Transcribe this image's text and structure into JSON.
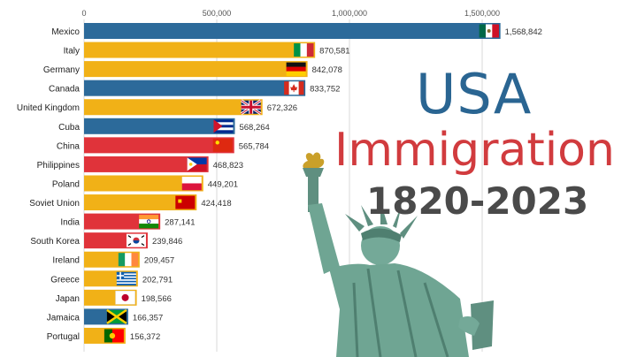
{
  "headline": {
    "line1": "USA",
    "line2": "Immigration",
    "line3": "1820-2023"
  },
  "colors": {
    "blue": "#2c6a9a",
    "gold": "#f1b117",
    "red": "#e0333a",
    "title_blue": "#2a6592",
    "title_red": "#d13b3e",
    "title_gray": "#4a4a4a"
  },
  "chart_data": {
    "type": "bar",
    "orientation": "horizontal",
    "title": "",
    "xlabel": "",
    "ylabel": "",
    "xlim": [
      0,
      1600000
    ],
    "x_ticks": [
      0,
      500000,
      1000000,
      1500000
    ],
    "x_tick_labels": [
      "0",
      "500,000",
      "1,000,000",
      "1,500,000"
    ],
    "grid": true,
    "categories": [
      "Mexico",
      "Italy",
      "Germany",
      "Canada",
      "United Kingdom",
      "Cuba",
      "China",
      "Philippines",
      "Poland",
      "Soviet Union",
      "India",
      "South Korea",
      "Ireland",
      "Greece",
      "Japan",
      "Jamaica",
      "Portugal"
    ],
    "values": [
      1568842,
      870581,
      842078,
      833752,
      672326,
      568264,
      565784,
      468823,
      449201,
      424418,
      287141,
      239846,
      209457,
      202791,
      198566,
      166357,
      156372
    ],
    "value_labels": [
      "1,568,842",
      "870,581",
      "842,078",
      "833,752",
      "672,326",
      "568,264",
      "565,784",
      "468,823",
      "449,201",
      "424,418",
      "287,141",
      "239,846",
      "209,457",
      "202,791",
      "198,566",
      "166,357",
      "156,372"
    ],
    "bar_colors": [
      "#2c6a9a",
      "#f1b117",
      "#f1b117",
      "#2c6a9a",
      "#f1b117",
      "#2c6a9a",
      "#e0333a",
      "#e0333a",
      "#f1b117",
      "#f1b117",
      "#e0333a",
      "#e0333a",
      "#f1b117",
      "#f1b117",
      "#f1b117",
      "#2c6a9a",
      "#f1b117"
    ],
    "flags": [
      "mexico-flag-icon",
      "italy-flag-icon",
      "germany-flag-icon",
      "canada-flag-icon",
      "uk-flag-icon",
      "cuba-flag-icon",
      "china-flag-icon",
      "philippines-flag-icon",
      "poland-flag-icon",
      "soviet-union-flag-icon",
      "india-flag-icon",
      "south-korea-flag-icon",
      "ireland-flag-icon",
      "greece-flag-icon",
      "japan-flag-icon",
      "jamaica-flag-icon",
      "portugal-flag-icon"
    ]
  }
}
